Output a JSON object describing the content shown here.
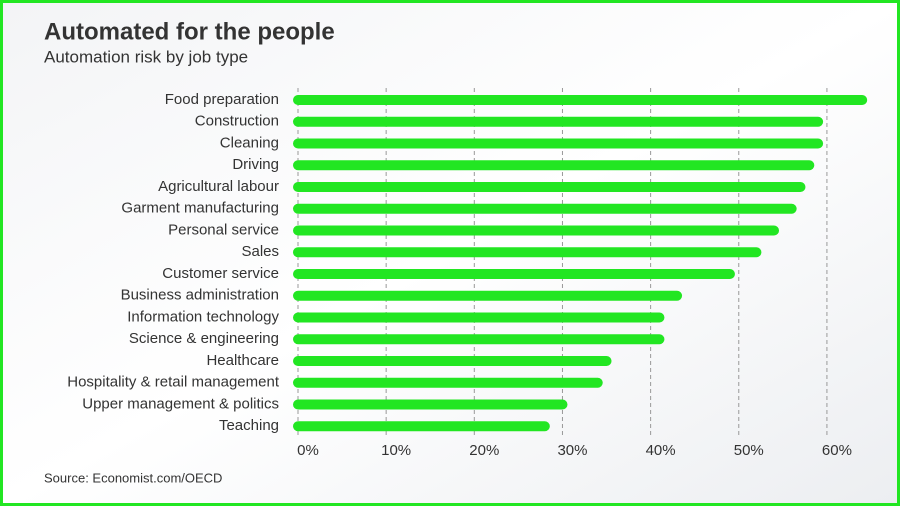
{
  "chart_data": {
    "type": "bar",
    "orientation": "horizontal",
    "title": "Automated for the people",
    "subtitle": "Automation risk by job type",
    "source": "Source: Economist.com/OECD",
    "categories": [
      "Food preparation",
      "Construction",
      "Cleaning",
      "Driving",
      "Agricultural labour",
      "Garment manufacturing",
      "Personal service",
      "Sales",
      "Customer service",
      "Business administration",
      "Information technology",
      "Science & engineering",
      "Healthcare",
      "Hospitality & retail management",
      "Upper management & politics",
      "Teaching"
    ],
    "values": [
      64,
      59,
      59,
      58,
      57,
      56,
      54,
      52,
      49,
      43,
      41,
      41,
      35,
      34,
      30,
      28
    ],
    "color": "#22e622",
    "xlim": [
      0,
      65
    ],
    "xticks": [
      {
        "value": 0,
        "label": "0%"
      },
      {
        "value": 10,
        "label": "10%"
      },
      {
        "value": 20,
        "label": "20%"
      },
      {
        "value": 30,
        "label": "30%"
      },
      {
        "value": 40,
        "label": "40%"
      },
      {
        "value": 50,
        "label": "50%"
      },
      {
        "value": 60,
        "label": "60%"
      }
    ],
    "grid": true
  }
}
